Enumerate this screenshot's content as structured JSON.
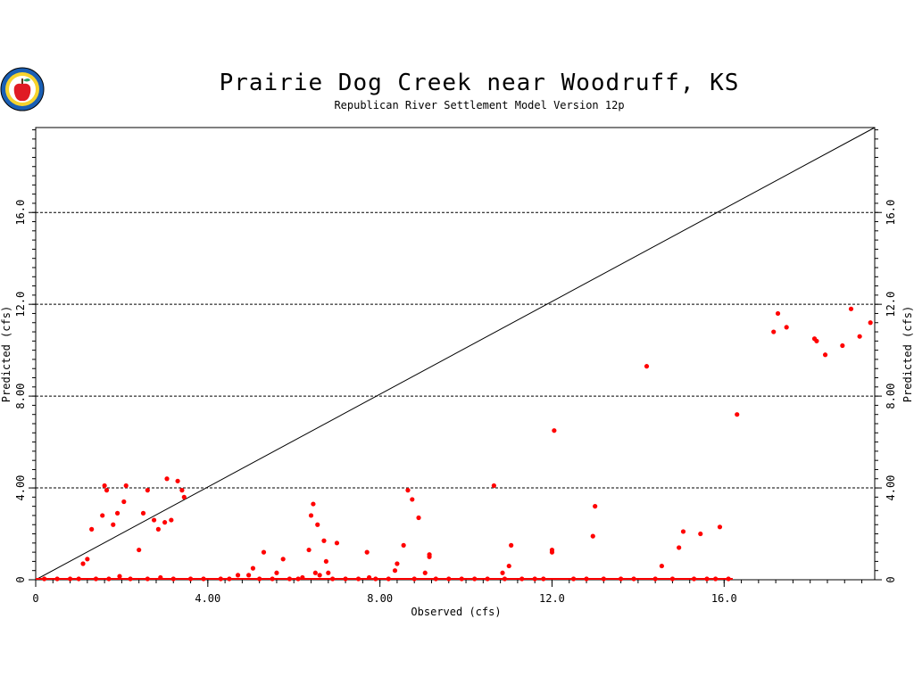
{
  "logo": {
    "icon": "apple-seal-logo"
  },
  "chart_data": {
    "type": "scatter",
    "title": "Prairie Dog Creek near Woodruff, KS",
    "subtitle": "Republican River Settlement Model Version 12p",
    "xlabel": "Observed (cfs)",
    "ylabel": "Predicted (cfs)",
    "xlim": [
      0,
      19.5
    ],
    "ylim": [
      0,
      19.7
    ],
    "xticks": [
      "0",
      "4.00",
      "8.00",
      "12.0",
      "16.0"
    ],
    "yticks": [
      "0",
      "4.00",
      "8.00",
      "12.0",
      "16.0"
    ],
    "grid": "horizontal dashed",
    "colors": {
      "points": "#ff0000",
      "line": "#000000",
      "grid": "#000000"
    },
    "reference_line": {
      "x": [
        0,
        19.5
      ],
      "y": [
        0,
        19.7
      ]
    },
    "series": [
      {
        "points": [
          [
            1.1,
            0.7
          ],
          [
            1.2,
            0.9
          ],
          [
            1.3,
            2.2
          ],
          [
            1.55,
            2.8
          ],
          [
            1.6,
            4.1
          ],
          [
            1.65,
            3.9
          ],
          [
            1.8,
            2.4
          ],
          [
            1.9,
            2.9
          ],
          [
            2.05,
            3.4
          ],
          [
            2.1,
            4.1
          ],
          [
            2.4,
            1.3
          ],
          [
            2.5,
            2.9
          ],
          [
            2.6,
            3.9
          ],
          [
            2.75,
            2.6
          ],
          [
            2.85,
            2.2
          ],
          [
            3.0,
            2.5
          ],
          [
            3.05,
            4.4
          ],
          [
            3.15,
            2.6
          ],
          [
            3.3,
            4.3
          ],
          [
            3.4,
            3.9
          ],
          [
            3.45,
            3.6
          ],
          [
            1.95,
            0.15
          ],
          [
            2.9,
            0.1
          ],
          [
            4.7,
            0.2
          ],
          [
            4.95,
            0.2
          ],
          [
            5.05,
            0.5
          ],
          [
            5.3,
            1.2
          ],
          [
            5.6,
            0.3
          ],
          [
            5.75,
            0.9
          ],
          [
            6.2,
            0.1
          ],
          [
            6.35,
            1.3
          ],
          [
            6.4,
            2.8
          ],
          [
            6.45,
            3.3
          ],
          [
            6.5,
            0.3
          ],
          [
            6.55,
            2.4
          ],
          [
            6.6,
            0.2
          ],
          [
            6.7,
            1.7
          ],
          [
            6.75,
            0.8
          ],
          [
            6.8,
            0.3
          ],
          [
            7.0,
            1.6
          ],
          [
            7.7,
            1.2
          ],
          [
            7.75,
            0.1
          ],
          [
            8.35,
            0.4
          ],
          [
            8.4,
            0.7
          ],
          [
            8.55,
            1.5
          ],
          [
            8.65,
            3.9
          ],
          [
            8.75,
            3.5
          ],
          [
            8.9,
            2.7
          ],
          [
            9.05,
            0.3
          ],
          [
            9.15,
            1.1
          ],
          [
            9.15,
            1.0
          ],
          [
            10.65,
            4.1
          ],
          [
            10.85,
            0.3
          ],
          [
            11.0,
            0.6
          ],
          [
            11.05,
            1.5
          ],
          [
            12.0,
            1.3
          ],
          [
            12.0,
            1.2
          ],
          [
            12.05,
            6.5
          ],
          [
            12.95,
            1.9
          ],
          [
            13.0,
            3.2
          ],
          [
            14.2,
            9.3
          ],
          [
            14.55,
            0.6
          ],
          [
            14.95,
            1.4
          ],
          [
            15.05,
            2.1
          ],
          [
            15.45,
            2.0
          ],
          [
            15.9,
            2.3
          ],
          [
            16.3,
            7.2
          ],
          [
            17.15,
            10.8
          ],
          [
            17.25,
            11.6
          ],
          [
            17.45,
            11.0
          ],
          [
            18.1,
            10.5
          ],
          [
            18.15,
            10.4
          ],
          [
            18.35,
            9.8
          ],
          [
            18.75,
            10.2
          ],
          [
            18.95,
            11.8
          ],
          [
            19.15,
            10.6
          ],
          [
            19.4,
            11.2
          ],
          [
            0.2,
            0
          ],
          [
            0.5,
            0
          ],
          [
            0.8,
            0
          ],
          [
            1.0,
            0
          ],
          [
            1.4,
            0
          ],
          [
            1.7,
            0
          ],
          [
            2.2,
            0
          ],
          [
            2.6,
            0
          ],
          [
            3.2,
            0
          ],
          [
            3.6,
            0
          ],
          [
            3.9,
            0
          ],
          [
            4.3,
            0
          ],
          [
            4.5,
            0
          ],
          [
            5.2,
            0
          ],
          [
            5.5,
            0
          ],
          [
            5.9,
            0
          ],
          [
            6.1,
            0
          ],
          [
            6.9,
            0
          ],
          [
            7.2,
            0
          ],
          [
            7.5,
            0
          ],
          [
            7.9,
            0
          ],
          [
            8.2,
            0
          ],
          [
            8.8,
            0
          ],
          [
            9.3,
            0
          ],
          [
            9.6,
            0
          ],
          [
            9.9,
            0
          ],
          [
            10.2,
            0
          ],
          [
            10.5,
            0
          ],
          [
            10.9,
            0
          ],
          [
            11.3,
            0
          ],
          [
            11.6,
            0
          ],
          [
            11.8,
            0
          ],
          [
            12.5,
            0
          ],
          [
            12.8,
            0
          ],
          [
            13.2,
            0
          ],
          [
            13.6,
            0
          ],
          [
            13.9,
            0
          ],
          [
            14.4,
            0
          ],
          [
            14.8,
            0
          ],
          [
            15.3,
            0
          ],
          [
            15.6,
            0
          ],
          [
            15.8,
            0
          ],
          [
            16.1,
            0
          ]
        ]
      }
    ]
  }
}
